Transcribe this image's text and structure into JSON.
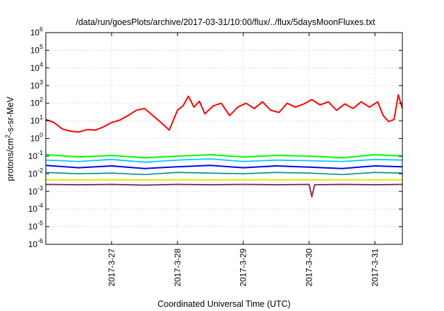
{
  "chart_data": {
    "type": "line",
    "title": "/data/run/goesPlots/archive/2017-03-31/10:00/flux/../flux/5daysMoonFluxes.txt",
    "xlabel": "Coordinated Universal Time (UTC)",
    "ylabel_parts": {
      "base": "protons/cm",
      "sup": "2",
      "rest": "-s-sr-MeV"
    },
    "y_scale": "log",
    "ylim": [
      1e-06,
      1000000.0
    ],
    "y_ticks": [
      {
        "value": 1e-06,
        "base": "10",
        "exp": "-6"
      },
      {
        "value": 1e-05,
        "base": "10",
        "exp": "-5"
      },
      {
        "value": 0.0001,
        "base": "10",
        "exp": "-4"
      },
      {
        "value": 0.001,
        "base": "10",
        "exp": "-3"
      },
      {
        "value": 0.01,
        "base": "10",
        "exp": "-2"
      },
      {
        "value": 0.1,
        "base": "10",
        "exp": "-1"
      },
      {
        "value": 1.0,
        "base": "10",
        "exp": "0"
      },
      {
        "value": 10.0,
        "base": "10",
        "exp": "1"
      },
      {
        "value": 100.0,
        "base": "10",
        "exp": "2"
      },
      {
        "value": 1000.0,
        "base": "10",
        "exp": "3"
      },
      {
        "value": 10000.0,
        "base": "10",
        "exp": "4"
      },
      {
        "value": 100000.0,
        "base": "10",
        "exp": "5"
      },
      {
        "value": 1000000.0,
        "base": "10",
        "exp": "6"
      }
    ],
    "xlim": [
      "2017-03-26 00:00",
      "2017-03-31 10:00"
    ],
    "x_ticks": [
      {
        "value": "2017-03-27 00:00",
        "label": "2017-3-27"
      },
      {
        "value": "2017-03-28 00:00",
        "label": "2017-3-28"
      },
      {
        "value": "2017-03-29 00:00",
        "label": "2017-3-29"
      },
      {
        "value": "2017-03-30 00:00",
        "label": "2017-3-30"
      },
      {
        "value": "2017-03-31 00:00",
        "label": "2017-3-31"
      }
    ],
    "grid": true,
    "series": [
      {
        "color": "#ff0000",
        "width": 2.0,
        "values": [
          [
            "2017-03-26 00:00",
            12
          ],
          [
            "2017-03-26 03:00",
            8
          ],
          [
            "2017-03-26 06:00",
            3.5
          ],
          [
            "2017-03-26 09:00",
            2.6
          ],
          [
            "2017-03-26 12:00",
            2.3
          ],
          [
            "2017-03-26 15:00",
            3.2
          ],
          [
            "2017-03-26 18:00",
            3.0
          ],
          [
            "2017-03-26 21:00",
            4.5
          ],
          [
            "2017-03-27 00:00",
            8
          ],
          [
            "2017-03-27 03:00",
            11
          ],
          [
            "2017-03-27 06:00",
            20
          ],
          [
            "2017-03-27 09:00",
            40
          ],
          [
            "2017-03-27 12:00",
            50
          ],
          [
            "2017-03-27 15:00",
            20
          ],
          [
            "2017-03-27 18:00",
            8
          ],
          [
            "2017-03-27 21:00",
            3
          ],
          [
            "2017-03-28 00:00",
            40
          ],
          [
            "2017-03-28 02:00",
            70
          ],
          [
            "2017-03-28 04:00",
            250
          ],
          [
            "2017-03-28 06:00",
            60
          ],
          [
            "2017-03-28 08:00",
            130
          ],
          [
            "2017-03-28 10:00",
            25
          ],
          [
            "2017-03-28 13:00",
            70
          ],
          [
            "2017-03-28 16:00",
            100
          ],
          [
            "2017-03-28 19:00",
            20
          ],
          [
            "2017-03-28 22:00",
            60
          ],
          [
            "2017-03-29 01:00",
            100
          ],
          [
            "2017-03-29 04:00",
            50
          ],
          [
            "2017-03-29 07:00",
            120
          ],
          [
            "2017-03-29 10:00",
            40
          ],
          [
            "2017-03-29 13:00",
            30
          ],
          [
            "2017-03-29 16:00",
            100
          ],
          [
            "2017-03-29 19:00",
            60
          ],
          [
            "2017-03-29 22:00",
            90
          ],
          [
            "2017-03-30 01:00",
            160
          ],
          [
            "2017-03-30 04:00",
            80
          ],
          [
            "2017-03-30 07:00",
            120
          ],
          [
            "2017-03-30 10:00",
            40
          ],
          [
            "2017-03-30 13:00",
            90
          ],
          [
            "2017-03-30 16:00",
            50
          ],
          [
            "2017-03-30 19:00",
            120
          ],
          [
            "2017-03-30 22:00",
            60
          ],
          [
            "2017-03-31 01:00",
            120
          ],
          [
            "2017-03-31 03:00",
            20
          ],
          [
            "2017-03-31 05:00",
            9
          ],
          [
            "2017-03-31 07:00",
            12
          ],
          [
            "2017-03-31 08:30",
            300
          ],
          [
            "2017-03-31 10:00",
            50
          ]
        ]
      },
      {
        "color": "#00ff00",
        "width": 2.0,
        "values": [
          [
            "2017-03-26 00:00",
            0.12
          ],
          [
            "2017-03-26 12:00",
            0.09
          ],
          [
            "2017-03-27 00:00",
            0.11
          ],
          [
            "2017-03-27 12:00",
            0.08
          ],
          [
            "2017-03-28 00:00",
            0.1
          ],
          [
            "2017-03-28 12:00",
            0.12
          ],
          [
            "2017-03-29 00:00",
            0.09
          ],
          [
            "2017-03-29 12:00",
            0.11
          ],
          [
            "2017-03-30 00:00",
            0.1
          ],
          [
            "2017-03-30 12:00",
            0.08
          ],
          [
            "2017-03-31 00:00",
            0.12
          ],
          [
            "2017-03-31 10:00",
            0.1
          ]
        ]
      },
      {
        "color": "#00c8ff",
        "width": 1.8,
        "values": [
          [
            "2017-03-26 00:00",
            0.06
          ],
          [
            "2017-03-26 12:00",
            0.05
          ],
          [
            "2017-03-27 00:00",
            0.065
          ],
          [
            "2017-03-27 12:00",
            0.045
          ],
          [
            "2017-03-28 00:00",
            0.06
          ],
          [
            "2017-03-28 12:00",
            0.07
          ],
          [
            "2017-03-29 00:00",
            0.05
          ],
          [
            "2017-03-29 12:00",
            0.06
          ],
          [
            "2017-03-30 00:00",
            0.055
          ],
          [
            "2017-03-30 12:00",
            0.05
          ],
          [
            "2017-03-31 00:00",
            0.065
          ],
          [
            "2017-03-31 10:00",
            0.06
          ]
        ]
      },
      {
        "color": "#0000ff",
        "width": 2.0,
        "values": [
          [
            "2017-03-26 00:00",
            0.03
          ],
          [
            "2017-03-26 12:00",
            0.022
          ],
          [
            "2017-03-27 00:00",
            0.028
          ],
          [
            "2017-03-27 12:00",
            0.02
          ],
          [
            "2017-03-28 00:00",
            0.025
          ],
          [
            "2017-03-28 12:00",
            0.03
          ],
          [
            "2017-03-29 00:00",
            0.022
          ],
          [
            "2017-03-29 12:00",
            0.028
          ],
          [
            "2017-03-30 00:00",
            0.024
          ],
          [
            "2017-03-30 12:00",
            0.02
          ],
          [
            "2017-03-31 00:00",
            0.028
          ],
          [
            "2017-03-31 10:00",
            0.025
          ]
        ]
      },
      {
        "color": "#008c8c",
        "width": 1.6,
        "values": [
          [
            "2017-03-26 00:00",
            0.012
          ],
          [
            "2017-03-26 12:00",
            0.01
          ],
          [
            "2017-03-27 00:00",
            0.011
          ],
          [
            "2017-03-27 12:00",
            0.009
          ],
          [
            "2017-03-28 00:00",
            0.012
          ],
          [
            "2017-03-28 12:00",
            0.011
          ],
          [
            "2017-03-29 00:00",
            0.01
          ],
          [
            "2017-03-29 12:00",
            0.012
          ],
          [
            "2017-03-30 00:00",
            0.011
          ],
          [
            "2017-03-30 12:00",
            0.009
          ],
          [
            "2017-03-31 00:00",
            0.012
          ],
          [
            "2017-03-31 10:00",
            0.011
          ]
        ]
      },
      {
        "color": "#e6e600",
        "width": 2.0,
        "values": [
          [
            "2017-03-26 00:00",
            0.0045
          ],
          [
            "2017-03-27 00:00",
            0.0045
          ],
          [
            "2017-03-28 00:00",
            0.0045
          ],
          [
            "2017-03-29 00:00",
            0.0045
          ],
          [
            "2017-03-30 00:00",
            0.0045
          ],
          [
            "2017-03-31 00:00",
            0.0045
          ],
          [
            "2017-03-31 10:00",
            0.0045
          ]
        ]
      },
      {
        "color": "#8b2f6e",
        "width": 2.0,
        "values": [
          [
            "2017-03-26 00:00",
            0.0025
          ],
          [
            "2017-03-26 12:00",
            0.0024
          ],
          [
            "2017-03-27 00:00",
            0.0025
          ],
          [
            "2017-03-27 12:00",
            0.0023
          ],
          [
            "2017-03-28 00:00",
            0.0025
          ],
          [
            "2017-03-28 12:00",
            0.0024
          ],
          [
            "2017-03-29 00:00",
            0.0025
          ],
          [
            "2017-03-29 12:00",
            0.0024
          ],
          [
            "2017-03-30 00:00",
            0.0025
          ],
          [
            "2017-03-30 01:00",
            0.0005
          ],
          [
            "2017-03-30 02:00",
            0.0024
          ],
          [
            "2017-03-30 12:00",
            0.0025
          ],
          [
            "2017-03-31 00:00",
            0.0024
          ],
          [
            "2017-03-31 10:00",
            0.0025
          ]
        ]
      }
    ]
  }
}
